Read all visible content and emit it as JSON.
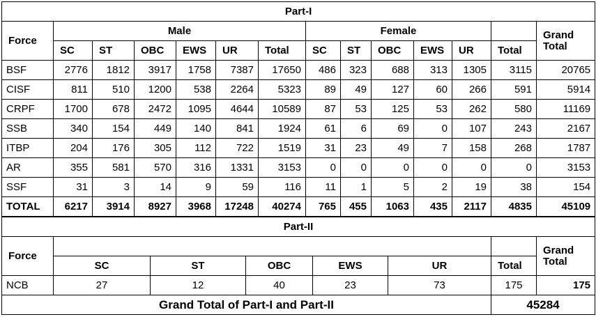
{
  "part1": {
    "title": "Part-I",
    "header": {
      "force": "Force",
      "male": "Male",
      "female": "Female",
      "grand_total": "Grand Total"
    },
    "male_columns": [
      "SC",
      "ST",
      "OBC",
      "EWS",
      "UR",
      "Total"
    ],
    "female_columns": [
      "SC",
      "ST",
      "OBC",
      "EWS",
      "UR",
      "Total"
    ],
    "rows": [
      [
        "BSF",
        2776,
        1812,
        3917,
        1758,
        7387,
        17650,
        486,
        323,
        688,
        313,
        1305,
        3115,
        20765
      ],
      [
        "CISF",
        811,
        510,
        1200,
        538,
        2264,
        5323,
        89,
        49,
        127,
        60,
        266,
        591,
        5914
      ],
      [
        "CRPF",
        1700,
        678,
        2472,
        1095,
        4644,
        10589,
        87,
        53,
        125,
        53,
        262,
        580,
        11169
      ],
      [
        "SSB",
        340,
        154,
        449,
        140,
        841,
        1924,
        61,
        6,
        69,
        0,
        107,
        243,
        2167
      ],
      [
        "ITBP",
        204,
        176,
        305,
        112,
        722,
        1519,
        31,
        23,
        49,
        7,
        158,
        268,
        1787
      ],
      [
        "AR",
        355,
        581,
        570,
        316,
        1331,
        3153,
        0,
        0,
        0,
        0,
        0,
        0,
        3153
      ],
      [
        "SSF",
        31,
        3,
        14,
        9,
        59,
        116,
        11,
        1,
        5,
        2,
        19,
        38,
        154
      ]
    ],
    "total_row": [
      "TOTAL",
      6217,
      3914,
      8927,
      3968,
      17248,
      40274,
      765,
      455,
      1063,
      435,
      2117,
      4835,
      45109
    ]
  },
  "part2": {
    "title": "Part-II",
    "header": {
      "force": "Force",
      "grand_total": "Grand Total"
    },
    "columns": [
      "SC",
      "ST",
      "OBC",
      "EWS",
      "UR",
      "Total"
    ],
    "rows": [
      [
        "NCB",
        27,
        12,
        40,
        23,
        73,
        175,
        175
      ]
    ]
  },
  "grand_total": {
    "label": "Grand Total of Part-I and Part-II",
    "value": 45284
  }
}
